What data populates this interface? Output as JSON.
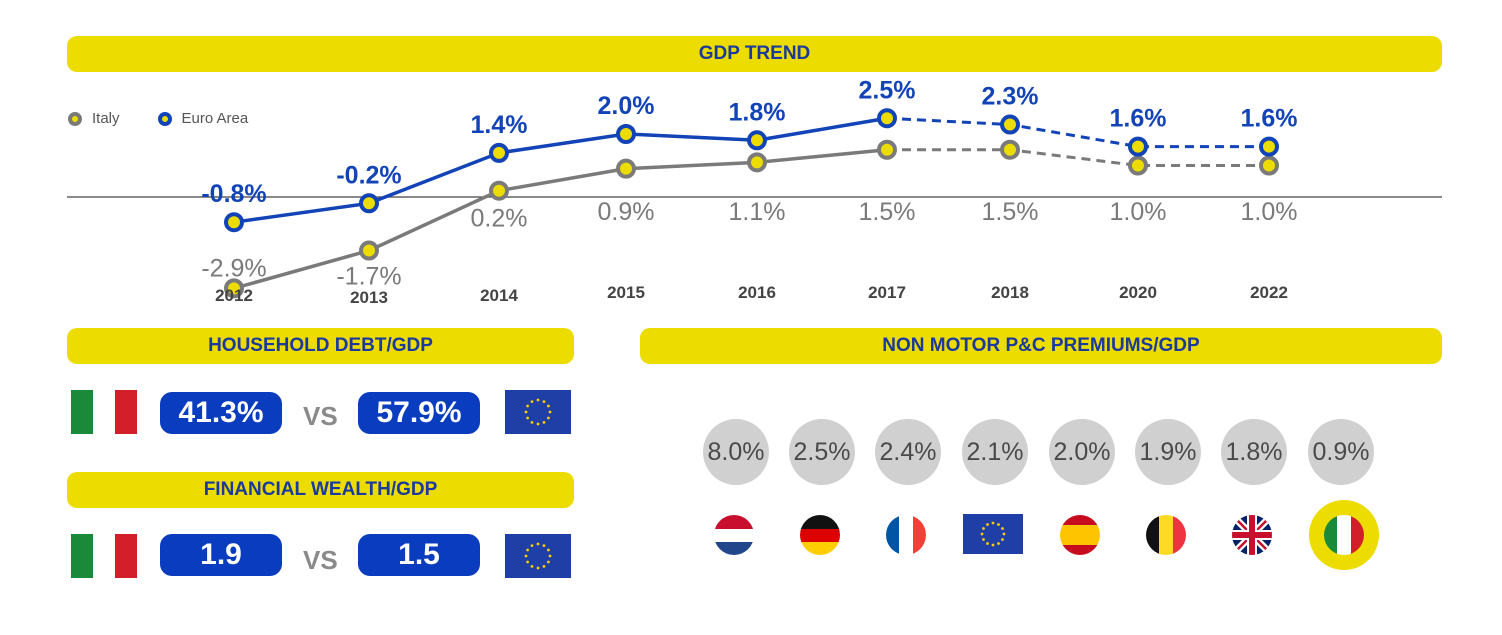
{
  "gdp_banner": "GDP TREND",
  "household_banner": "HOUSEHOLD DEBT/GDP",
  "wealth_banner": "FINANCIAL WEALTH/GDP",
  "premiums_banner": "NON MOTOR P&C PREMIUMS/GDP",
  "legend": {
    "italy": "Italy",
    "euro": "Euro Area"
  },
  "chart_data": {
    "type": "line",
    "title": "GDP TREND",
    "categories": [
      "2012",
      "2013",
      "2014",
      "2015",
      "2016",
      "2017",
      "2018",
      "2020",
      "2022"
    ],
    "forecast_from_index": 5,
    "series": [
      {
        "name": "Euro Area",
        "color": "#1244b8",
        "values": [
          -0.8,
          -0.2,
          1.4,
          2.0,
          1.8,
          2.5,
          2.3,
          1.6,
          1.6
        ],
        "labels": [
          "-0.8%",
          "-0.2%",
          "1.4%",
          "2.0%",
          "1.8%",
          "2.5%",
          "2.3%",
          "1.6%",
          "1.6%"
        ]
      },
      {
        "name": "Italy",
        "color": "#7a7a7a",
        "values": [
          -2.9,
          -1.7,
          0.2,
          0.9,
          1.1,
          1.5,
          1.5,
          1.0,
          1.0
        ],
        "labels": [
          "-2.9%",
          "-1.7%",
          "0.2%",
          "0.9%",
          "1.1%",
          "1.5%",
          "1.5%",
          "1.0%",
          "1.0%"
        ]
      }
    ]
  },
  "household": {
    "italy": "41.3%",
    "vs": "VS",
    "euro": "57.9%"
  },
  "wealth": {
    "italy": "1.9",
    "vs": "VS",
    "euro": "1.5"
  },
  "premiums": [
    {
      "value": "8.0%",
      "flag": "netherlands-flag"
    },
    {
      "value": "2.5%",
      "flag": "germany-flag"
    },
    {
      "value": "2.4%",
      "flag": "france-flag"
    },
    {
      "value": "2.1%",
      "flag": "eu-flag"
    },
    {
      "value": "2.0%",
      "flag": "spain-flag"
    },
    {
      "value": "1.9%",
      "flag": "belgium-flag"
    },
    {
      "value": "1.8%",
      "flag": "uk-flag"
    },
    {
      "value": "0.9%",
      "flag": "italy-flag"
    }
  ],
  "colors": {
    "yellow": "#eddc00",
    "blue": "#0a3cbf",
    "grey": "#7a7a7a"
  }
}
